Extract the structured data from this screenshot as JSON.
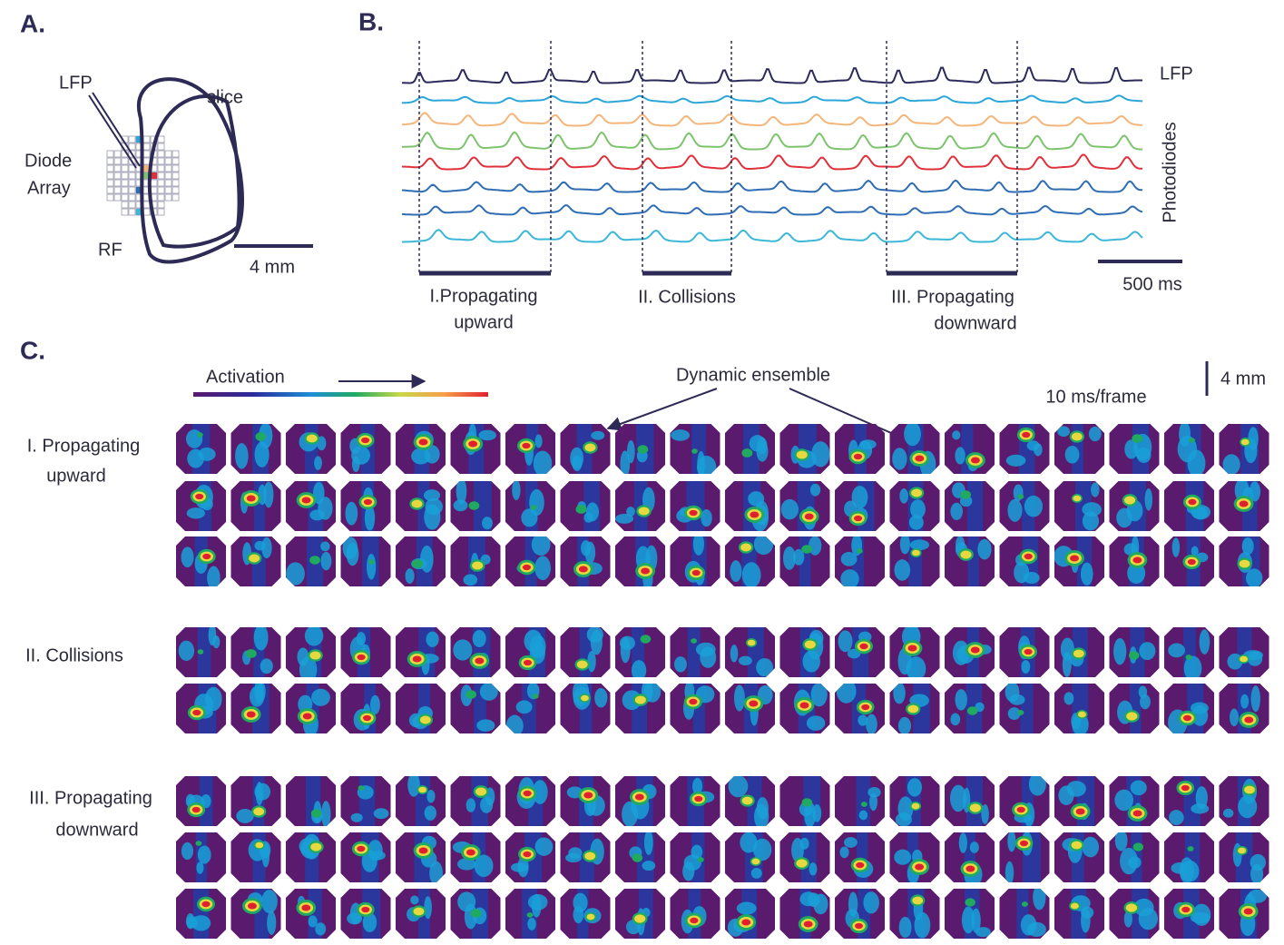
{
  "panel_a": {
    "label": "A.",
    "lfp": "LFP",
    "slice": "slice",
    "diode": "Diode",
    "array": "Array",
    "rf": "RF",
    "scale": "4 mm"
  },
  "panel_b": {
    "label": "B.",
    "lfp": "LFP",
    "photodiodes": "Photodiodes",
    "scale": "500 ms",
    "epochs": [
      {
        "line1": "I.Propagating",
        "line2": "upward"
      },
      {
        "line1": "II. Collisions"
      },
      {
        "line1": "III. Propagating",
        "line2": "downward"
      }
    ]
  },
  "panel_c": {
    "label": "C.",
    "activation": "Activation",
    "dynamic_ensemble": "Dynamic ensemble",
    "frame_rate": "10 ms/frame",
    "scale": "4 mm",
    "groups": [
      {
        "line1": "I. Propagating",
        "line2": "upward"
      },
      {
        "line1": "II. Collisions"
      },
      {
        "line1": "III. Propagating",
        "line2": "downward"
      }
    ]
  }
}
